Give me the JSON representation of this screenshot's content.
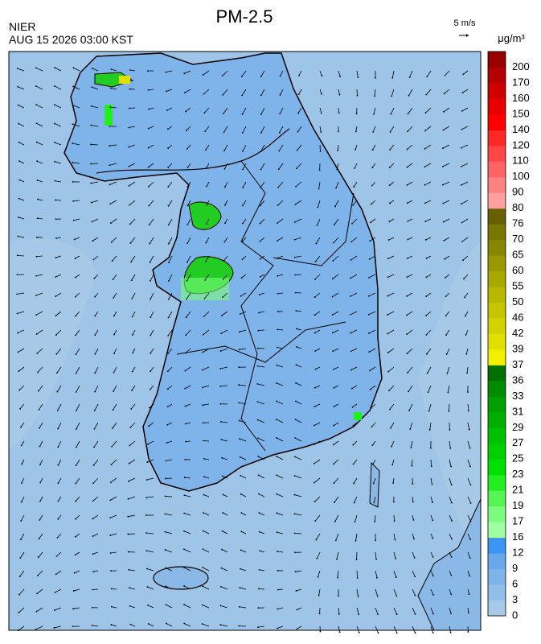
{
  "title": "PM-2.5",
  "source": "NIER",
  "timestamp": "AUG 15 2026 03:00 KST",
  "wind_scale": "5 m/s",
  "unit": "μg/m³",
  "colorbar": {
    "labels": [
      0,
      3,
      6,
      9,
      12,
      16,
      17,
      19,
      21,
      23,
      25,
      27,
      29,
      31,
      33,
      36,
      37,
      39,
      42,
      46,
      50,
      55,
      60,
      65,
      70,
      76,
      80,
      90,
      100,
      110,
      120,
      140,
      150,
      160,
      170,
      200
    ],
    "colors": [
      "#a5c9e6",
      "#92bfe8",
      "#7fb4ea",
      "#6aa8ec",
      "#3b94f2",
      "#a0ffa0",
      "#7cfb7c",
      "#55f555",
      "#22ee22",
      "#00e000",
      "#00d000",
      "#00c000",
      "#00b000",
      "#00a000",
      "#008c00",
      "#007000",
      "#f0f000",
      "#e0e000",
      "#d2d200",
      "#c6c600",
      "#b8b800",
      "#a8a800",
      "#989800",
      "#888800",
      "#787800",
      "#686000",
      "#ffa0a0",
      "#ff8282",
      "#ff6464",
      "#ff4646",
      "#ff2828",
      "#ff0000",
      "#e80000",
      "#d00000",
      "#b40000",
      "#980000"
    ]
  }
}
